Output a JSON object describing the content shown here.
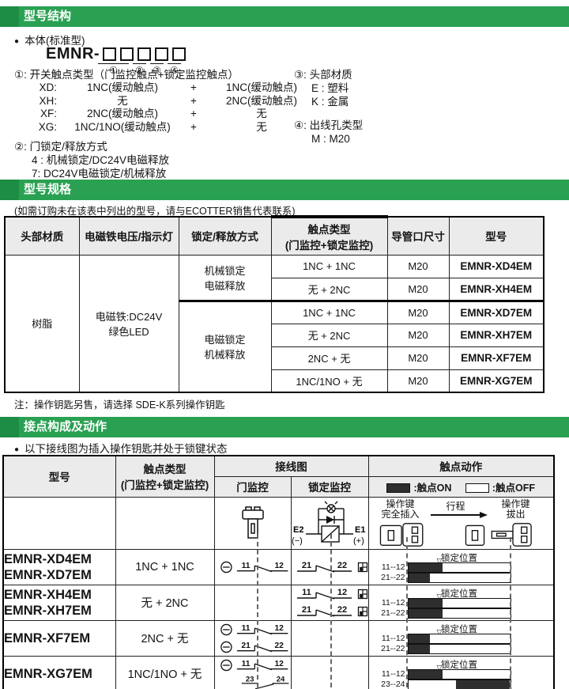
{
  "colors": {
    "green": "#2aa152",
    "green_dark": "#1d8c44",
    "header_gray": "#ebebeb",
    "bar_fill": "#2e2e2e"
  },
  "section1": {
    "title": "型号结构",
    "bullet": "本体(标准型)",
    "model_prefix": "EMNR-",
    "digits": [
      "①",
      "②",
      "③",
      "④"
    ],
    "item1_head": "①: 开关触点类型（门监控触点+锁定监控触点）",
    "item1_rows": [
      {
        "code": "XD:",
        "left": "1NC(缓动触点)",
        "plus": "+",
        "right": "1NC(缓动触点)"
      },
      {
        "code": "XH:",
        "left": "无",
        "plus": "+",
        "right": "2NC(缓动触点)"
      },
      {
        "code": "XF:",
        "left": "2NC(缓动触点)",
        "plus": "+",
        "right": "无"
      },
      {
        "code": "XG:",
        "left": "1NC/1NO(缓动触点)",
        "plus": "+",
        "right": "无"
      }
    ],
    "item2_head": "②: 门锁定/释放方式",
    "item2_lines": [
      "4 : 机械锁定/DC24V电磁释放",
      "7: DC24V电磁锁定/机械释放"
    ],
    "item3_head": "③: 头部材质",
    "item3_lines": [
      "E : 塑料",
      "K : 金属"
    ],
    "item4_head": "④: 出线孔类型",
    "item4_lines": [
      "M : M20"
    ]
  },
  "section2": {
    "title": "型号规格",
    "note": "(如需订购未在该表中列出的型号，请与ECOTTER销售代表联系)",
    "headers": {
      "material": "头部材质",
      "voltage": "电磁铁电压/指示灯",
      "lock": "锁定/释放方式",
      "contact": "触点类型\n(门监控+锁定监控)",
      "conduit": "导管口尺寸",
      "model": "型号"
    },
    "material": "树脂",
    "voltage": "电磁铁:DC24V\n绿色LED",
    "lock_method_1": "机械锁定\n电磁释放",
    "lock_method_2": "电磁锁定\n机械释放",
    "rows": [
      {
        "contact": "1NC + 1NC",
        "conduit": "M20",
        "model": "EMNR-XD4EM"
      },
      {
        "contact": "无 + 2NC",
        "conduit": "M20",
        "model": "EMNR-XH4EM"
      },
      {
        "contact": "1NC + 1NC",
        "conduit": "M20",
        "model": "EMNR-XD7EM"
      },
      {
        "contact": "无 + 2NC",
        "conduit": "M20",
        "model": "EMNR-XH7EM"
      },
      {
        "contact": "2NC + 无",
        "conduit": "M20",
        "model": "EMNR-XF7EM"
      },
      {
        "contact": "1NC/1NO + 无",
        "conduit": "M20",
        "model": "EMNR-XG7EM"
      }
    ],
    "footnote": "注：操作钥匙另售，请选择 SDE-K系列操作钥匙"
  },
  "section3": {
    "title": "接点构成及动作",
    "bullet": "以下接线图为插入操作钥匙并处于锁键状态",
    "headers": {
      "model": "型号",
      "contact": "触点类型\n(门监控+锁定监控)",
      "wiring": "接线图",
      "door": "门监控",
      "lock": "锁定监控",
      "action": "触点动作",
      "legend_on": ":触点ON",
      "legend_off": ":触点OFF"
    },
    "diagram": {
      "e2": "E2",
      "e2_sign": "(−)",
      "e1": "E1",
      "e1_sign": "(+)",
      "key_in": "操作键\n完全插入",
      "travel": "行程",
      "key_out": "操作键\n拔出",
      "lock_pos": "锁定位置"
    },
    "rows": [
      {
        "models": "EMNR-XD4EM\nEMNR-XD7EM",
        "contact": "1NC + 1NC",
        "door": [
          {
            "a": "11",
            "b": "12",
            "type": "nc",
            "minus": true
          }
        ],
        "lock": [
          {
            "a": "21",
            "b": "22",
            "type": "nc",
            "lockicon": true
          }
        ],
        "bars": [
          {
            "label": "11--12",
            "fill": [
              0,
              34
            ]
          },
          {
            "label": "21--22",
            "fill": [
              0,
              21
            ]
          }
        ]
      },
      {
        "models": "EMNR-XH4EM\nEMNR-XH7EM",
        "contact": "无 + 2NC",
        "door": [],
        "lock": [
          {
            "a": "11",
            "b": "12",
            "type": "nc",
            "lockicon": true
          },
          {
            "a": "21",
            "b": "22",
            "type": "nc",
            "lockicon": true
          }
        ],
        "bars": [
          {
            "label": "11--12",
            "fill": [
              0,
              34
            ]
          },
          {
            "label": "21--22",
            "fill": [
              0,
              34
            ]
          }
        ]
      },
      {
        "models": "EMNR-XF7EM",
        "contact": "2NC + 无",
        "door": [
          {
            "a": "11",
            "b": "12",
            "type": "nc",
            "minus": true
          },
          {
            "a": "21",
            "b": "22",
            "type": "nc",
            "minus": true
          }
        ],
        "lock": [],
        "bars": [
          {
            "label": "11--12",
            "fill": [
              0,
              21
            ]
          },
          {
            "label": "21--22",
            "fill": [
              0,
              21
            ]
          }
        ]
      },
      {
        "models": "EMNR-XG7EM",
        "contact": "1NC/1NO + 无",
        "door": [
          {
            "a": "11",
            "b": "12",
            "type": "nc",
            "minus": true
          },
          {
            "a": "23",
            "b": "24",
            "type": "no"
          }
        ],
        "lock": [],
        "bars": [
          {
            "label": "11--12",
            "fill": [
              0,
              34
            ]
          },
          {
            "label": "23--24",
            "fill": [
              47,
              100
            ]
          }
        ]
      }
    ]
  }
}
